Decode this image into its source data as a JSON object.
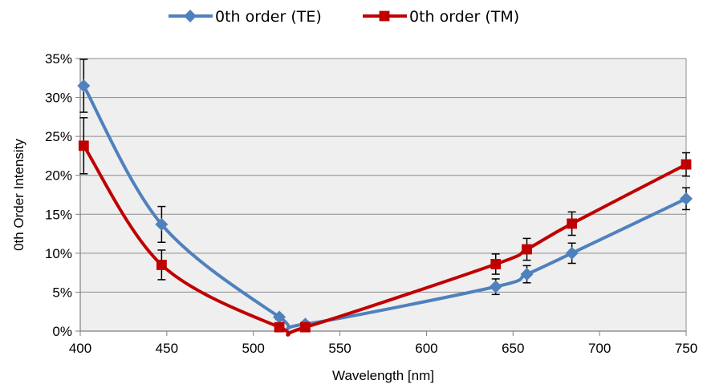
{
  "chart_data": {
    "type": "line",
    "title": "",
    "xlabel": "Wavelength [nm]",
    "ylabel": "0th Order Intensity",
    "xlim": [
      400,
      750
    ],
    "ylim": [
      0,
      35
    ],
    "x_ticks": [
      400,
      450,
      500,
      550,
      600,
      650,
      700,
      750
    ],
    "y_ticks": [
      0,
      5,
      10,
      15,
      20,
      25,
      30,
      35
    ],
    "y_tick_suffix": "%",
    "grid": "horizontal",
    "legend_position": "top",
    "series": [
      {
        "name": "0th order (TE)",
        "color": "#4F81BD",
        "marker": "diamond",
        "x": [
          402,
          447,
          515,
          530,
          640,
          658,
          684,
          750
        ],
        "y": [
          31.5,
          13.7,
          1.8,
          0.9,
          5.7,
          7.3,
          10.0,
          17.0
        ],
        "error": [
          3.4,
          2.3,
          0.3,
          0.3,
          1.0,
          1.1,
          1.3,
          1.4
        ]
      },
      {
        "name": "0th order (TM)",
        "color": "#C00000",
        "marker": "square",
        "x": [
          402,
          447,
          515,
          530,
          640,
          658,
          684,
          750
        ],
        "y": [
          23.8,
          8.5,
          0.5,
          0.5,
          8.6,
          10.5,
          13.8,
          21.4
        ],
        "error": [
          3.6,
          1.9,
          0.3,
          0.3,
          1.3,
          1.4,
          1.5,
          1.5
        ]
      }
    ]
  }
}
